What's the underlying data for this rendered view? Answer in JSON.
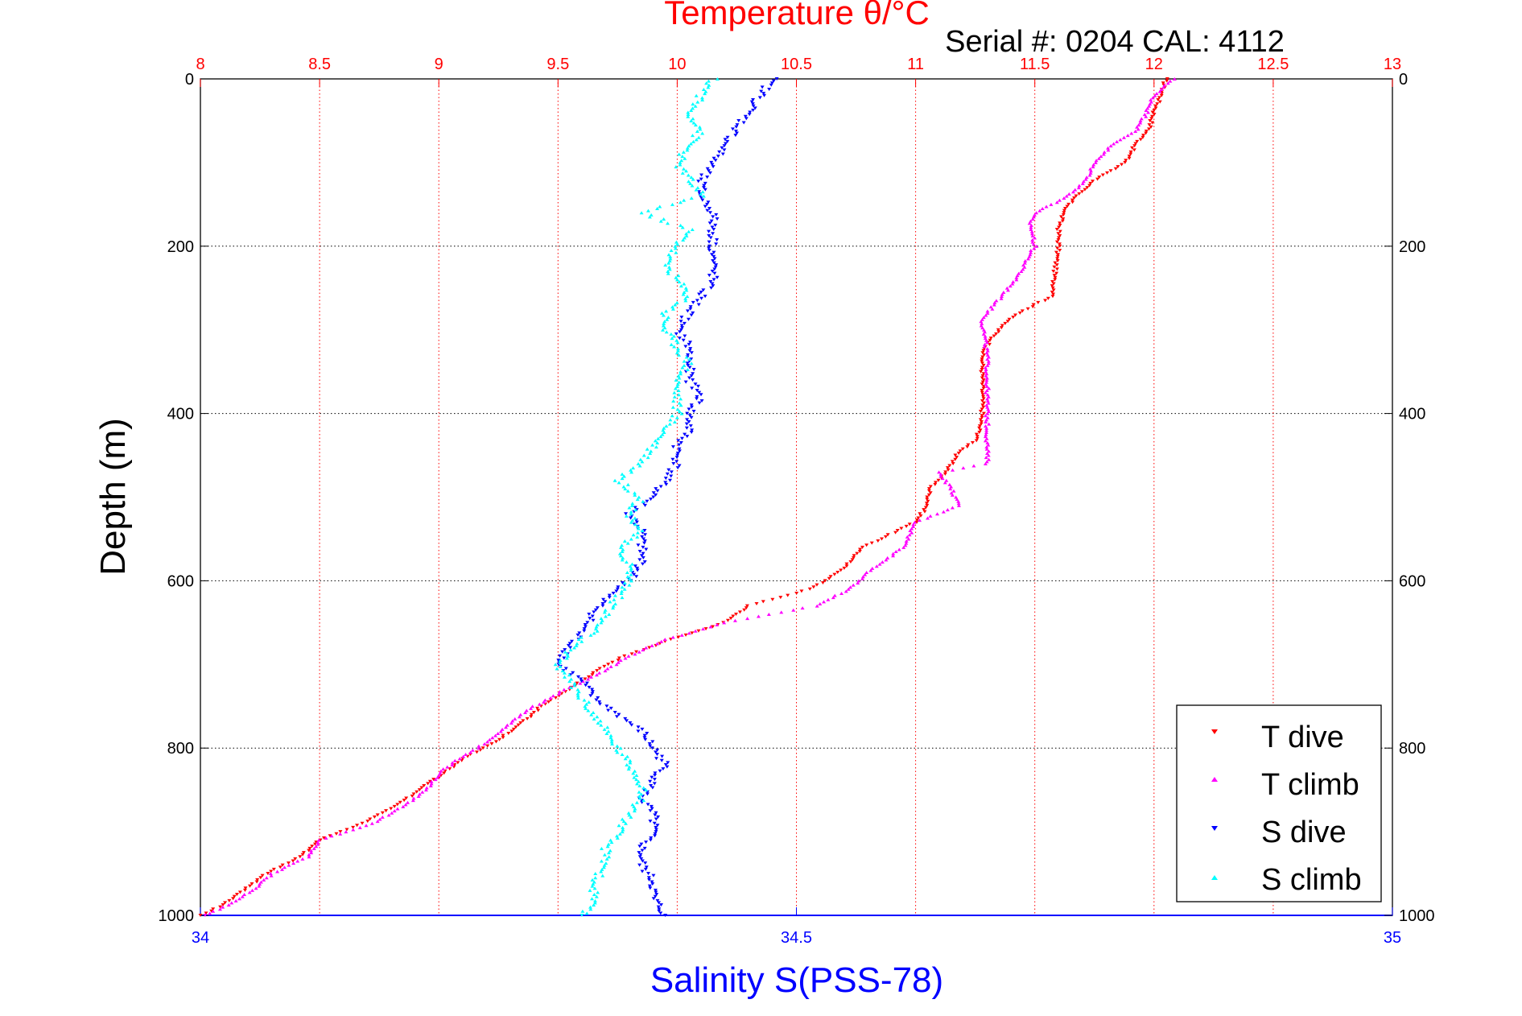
{
  "chart_data": {
    "type": "scatter",
    "title": "Temperature θ/°C",
    "subtitle": "Serial #: 0204  CAL: 4112",
    "ylabel": "Depth (m)",
    "xlabel_bottom": "Salinity S(PSS-78)",
    "ylim": [
      0,
      1000
    ],
    "y_reversed": true,
    "y_ticks": [
      0,
      200,
      400,
      600,
      800,
      1000
    ],
    "x_top": {
      "label": "Temperature θ/°C",
      "range": [
        8,
        13
      ],
      "ticks": [
        8,
        8.5,
        9,
        9.5,
        10,
        10.5,
        11,
        11.5,
        12,
        12.5,
        13
      ],
      "color": "#ff0000"
    },
    "x_bottom": {
      "label": "Salinity S(PSS-78)",
      "range": [
        34,
        35
      ],
      "ticks": [
        34,
        34.5,
        35
      ],
      "color": "#0000ff"
    },
    "grid": true,
    "legend_placement": "bottom-right",
    "series": [
      {
        "name": "T dive",
        "axis": "top",
        "color": "#ff0000",
        "marker": "triangle-down",
        "depth": [
          0,
          20,
          40,
          60,
          80,
          100,
          120,
          140,
          160,
          180,
          200,
          220,
          240,
          260,
          270,
          290,
          310,
          330,
          360,
          400,
          430,
          450,
          470,
          490,
          510,
          530,
          560,
          590,
          610,
          630,
          650,
          670,
          690,
          710,
          730,
          750,
          770,
          790,
          810,
          830,
          850,
          870,
          890,
          910,
          930,
          950,
          970,
          990,
          1000
        ],
        "values": [
          12.05,
          12.03,
          12.0,
          11.98,
          11.92,
          11.88,
          11.76,
          11.67,
          11.62,
          11.6,
          11.6,
          11.59,
          11.58,
          11.58,
          11.5,
          11.38,
          11.32,
          11.28,
          11.28,
          11.28,
          11.26,
          11.17,
          11.13,
          11.06,
          11.05,
          11.0,
          10.78,
          10.68,
          10.56,
          10.3,
          10.2,
          9.98,
          9.78,
          9.65,
          9.55,
          9.43,
          9.35,
          9.25,
          9.12,
          9.02,
          8.92,
          8.82,
          8.68,
          8.5,
          8.42,
          8.28,
          8.18,
          8.08,
          8.0
        ]
      },
      {
        "name": "T climb",
        "axis": "top",
        "color": "#ff00ff",
        "marker": "triangle-up",
        "depth": [
          0,
          20,
          40,
          60,
          80,
          100,
          120,
          140,
          160,
          170,
          200,
          240,
          280,
          290,
          330,
          360,
          400,
          430,
          460,
          470,
          490,
          510,
          530,
          560,
          590,
          610,
          630,
          650,
          670,
          690,
          710,
          730,
          750,
          770,
          790,
          810,
          830,
          850,
          870,
          890,
          910,
          930,
          950,
          970,
          990,
          1000
        ],
        "values": [
          12.08,
          12.0,
          11.97,
          11.93,
          11.82,
          11.75,
          11.72,
          11.64,
          11.5,
          11.48,
          11.5,
          11.42,
          11.3,
          11.28,
          11.3,
          11.3,
          11.3,
          11.3,
          11.3,
          11.1,
          11.15,
          11.18,
          11.0,
          10.95,
          10.8,
          10.72,
          10.58,
          10.2,
          9.95,
          9.8,
          9.68,
          9.53,
          9.4,
          9.3,
          9.22,
          9.1,
          9.0,
          8.95,
          8.85,
          8.72,
          8.5,
          8.45,
          8.3,
          8.22,
          8.1,
          8.02
        ]
      },
      {
        "name": "S dive",
        "axis": "bottom",
        "color": "#0000ff",
        "marker": "triangle-down",
        "depth": [
          0,
          20,
          40,
          60,
          80,
          100,
          120,
          140,
          160,
          180,
          200,
          220,
          240,
          260,
          280,
          300,
          320,
          340,
          360,
          380,
          400,
          420,
          440,
          460,
          480,
          500,
          520,
          540,
          560,
          580,
          600,
          620,
          640,
          660,
          680,
          700,
          720,
          740,
          760,
          780,
          800,
          820,
          840,
          860,
          880,
          900,
          920,
          940,
          960,
          980,
          1000
        ],
        "values": [
          34.48,
          34.47,
          34.46,
          34.45,
          34.44,
          34.43,
          34.42,
          34.42,
          34.43,
          34.43,
          34.43,
          34.43,
          34.43,
          34.42,
          34.41,
          34.4,
          34.41,
          34.41,
          34.41,
          34.42,
          34.41,
          34.41,
          34.4,
          34.4,
          34.39,
          34.38,
          34.36,
          34.37,
          34.37,
          34.37,
          34.36,
          34.34,
          34.33,
          34.32,
          34.31,
          34.3,
          34.32,
          34.33,
          34.35,
          34.37,
          34.38,
          34.39,
          34.38,
          34.37,
          34.38,
          34.38,
          34.37,
          34.37,
          34.38,
          34.38,
          34.39
        ]
      },
      {
        "name": "S climb",
        "axis": "bottom",
        "color": "#00ffff",
        "marker": "triangle-up",
        "depth": [
          0,
          20,
          40,
          60,
          80,
          100,
          120,
          140,
          160,
          180,
          200,
          220,
          240,
          260,
          280,
          300,
          320,
          340,
          360,
          380,
          400,
          420,
          440,
          460,
          480,
          500,
          520,
          540,
          560,
          580,
          600,
          620,
          640,
          660,
          680,
          700,
          720,
          740,
          760,
          780,
          800,
          820,
          840,
          860,
          880,
          900,
          920,
          940,
          960,
          980,
          1000
        ],
        "values": [
          34.43,
          34.42,
          34.41,
          34.42,
          34.41,
          34.4,
          34.41,
          34.42,
          34.37,
          34.41,
          34.4,
          34.39,
          34.4,
          34.41,
          34.39,
          34.39,
          34.4,
          34.41,
          34.4,
          34.4,
          34.4,
          34.39,
          34.38,
          34.37,
          34.35,
          34.37,
          34.36,
          34.37,
          34.35,
          34.36,
          34.36,
          34.35,
          34.34,
          34.33,
          34.31,
          34.3,
          34.31,
          34.32,
          34.33,
          34.34,
          34.35,
          34.36,
          34.37,
          34.37,
          34.36,
          34.35,
          34.34,
          34.34,
          34.33,
          34.33,
          34.32
        ]
      }
    ]
  }
}
